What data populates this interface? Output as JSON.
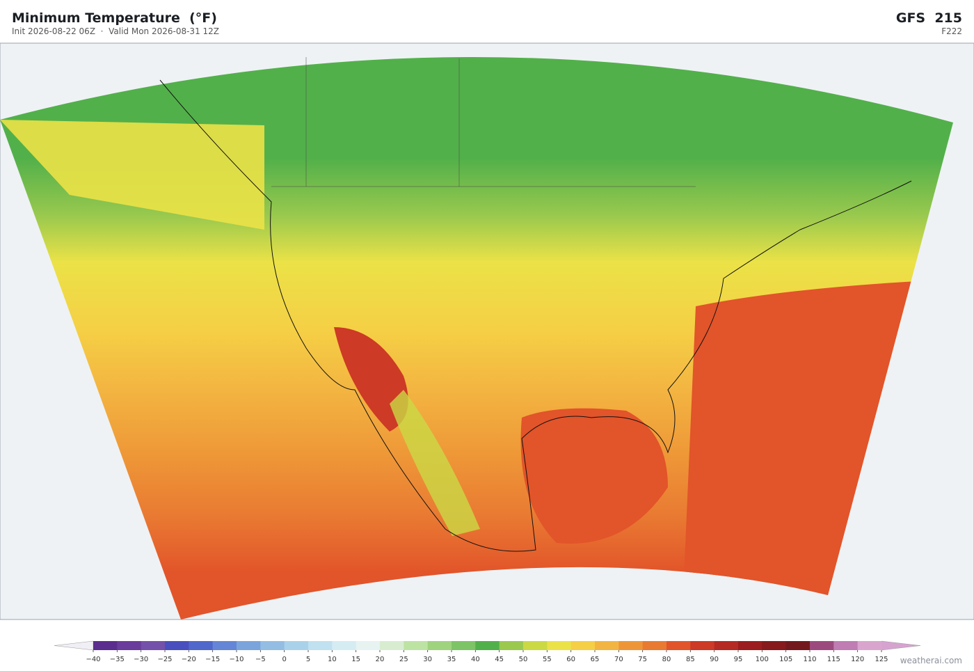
{
  "header": {
    "title": "Minimum Temperature  (°F)",
    "subtitle": "Init 2026-08-22 06Z  ·  Valid Mon 2026-08-31 12Z",
    "model": "GFS  215",
    "frame": "F222"
  },
  "colorbar": {
    "ticks": [
      {
        "value": -40,
        "label": "−40"
      },
      {
        "value": -35,
        "label": "−35"
      },
      {
        "value": -30,
        "label": "−30"
      },
      {
        "value": -25,
        "label": "−25"
      },
      {
        "value": -20,
        "label": "−20"
      },
      {
        "value": -15,
        "label": "−15"
      },
      {
        "value": -10,
        "label": "−10"
      },
      {
        "value": -5,
        "label": "−5"
      },
      0,
      5,
      10,
      15,
      20,
      25,
      30,
      35,
      40,
      45,
      50,
      55,
      60,
      65,
      70,
      75,
      80,
      85,
      90,
      95,
      100,
      105,
      110,
      115,
      120,
      125
    ],
    "colors": [
      "#5b2d8e",
      "#6a3c9c",
      "#7451aa",
      "#4a4fbf",
      "#5067cc",
      "#6586d6",
      "#7ba4dc",
      "#93bde3",
      "#a9d2ea",
      "#c0e1ef",
      "#d5ecf3",
      "#e6f3f1",
      "#d8edd0",
      "#bde3a2",
      "#9fd37e",
      "#7dc466",
      "#52b04a",
      "#9ac94e",
      "#cbd945",
      "#ebe247",
      "#f5cf45",
      "#f3b541",
      "#ee9637",
      "#e97a32",
      "#e2542a",
      "#cd3a25",
      "#b52a22",
      "#9b1d1f",
      "#861a1c",
      "#73191e",
      "#9c4a7e",
      "#bf7db4",
      "#d9a5cf"
    ],
    "under_color": "#f1eff6",
    "over_color": "#d6a3d0"
  },
  "footer": {
    "credit": "weatherai.com"
  }
}
